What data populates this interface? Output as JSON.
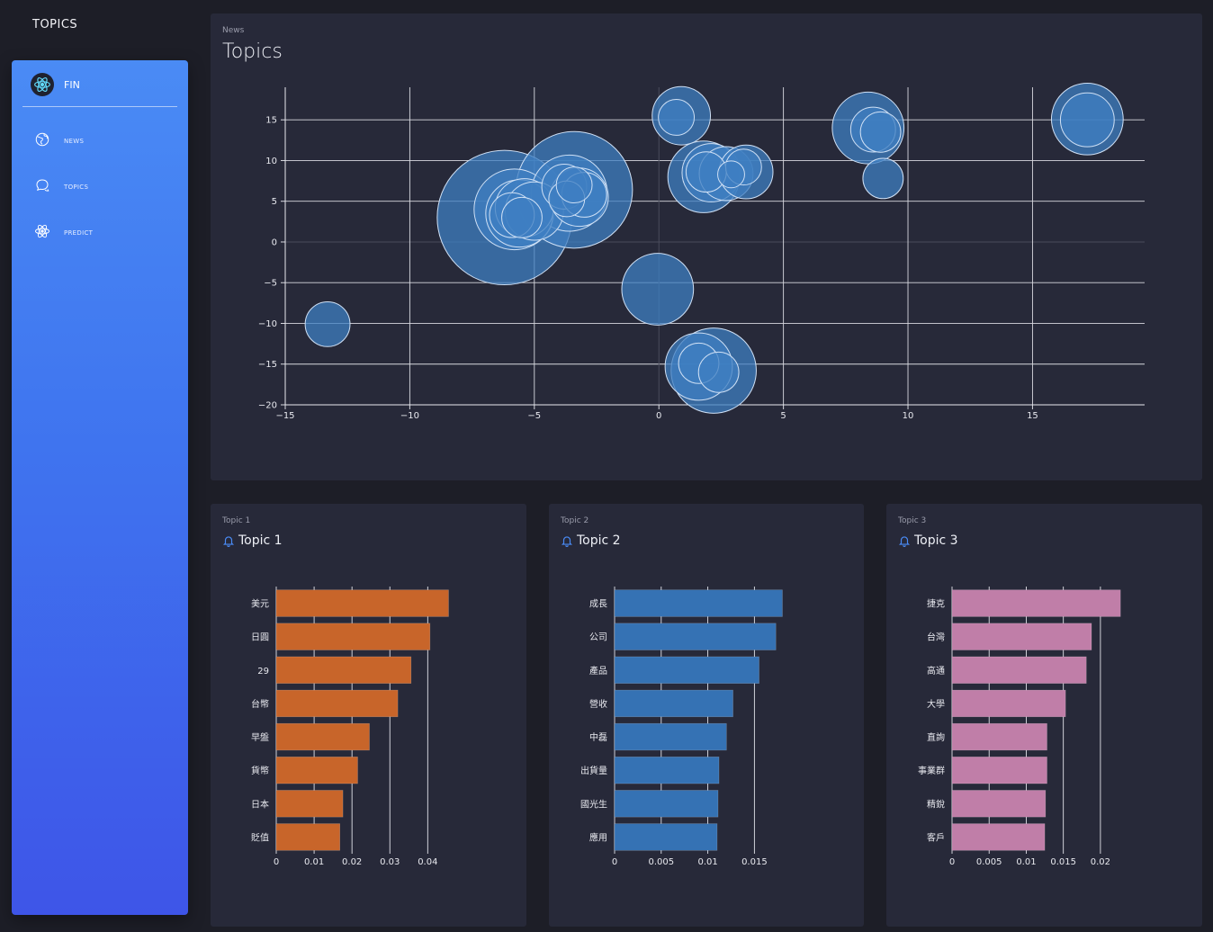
{
  "app": {
    "title": "TOPICS"
  },
  "sidebar": {
    "brand": {
      "label": "FIN",
      "icon": "react-atom-icon"
    },
    "items": [
      {
        "label": "NEWS",
        "icon": "globe-icon"
      },
      {
        "label": "TOPICS",
        "icon": "chat-bubbles-icon"
      },
      {
        "label": "PREDICT",
        "icon": "atom-icon"
      }
    ]
  },
  "main": {
    "subtitle": "News",
    "title": "Topics",
    "chart_data": {
      "type": "scatter",
      "title": "",
      "xlabel": "",
      "ylabel": "",
      "xlim": [
        -15,
        19.5
      ],
      "ylim": [
        -20,
        19
      ],
      "xticks": [
        -15,
        -10,
        -5,
        0,
        5,
        10,
        15
      ],
      "yticks": [
        15,
        10,
        5,
        0,
        -5,
        -10,
        -15,
        -20
      ],
      "grid": true,
      "color": "#3f7fc1",
      "points": [
        {
          "x": -13.3,
          "y": -10.1,
          "r": 1.0
        },
        {
          "x": -6.2,
          "y": 3.0,
          "r": 3.0
        },
        {
          "x": -5.8,
          "y": 4.0,
          "r": 1.8
        },
        {
          "x": -5.6,
          "y": 3.5,
          "r": 1.5
        },
        {
          "x": -5.4,
          "y": 4.2,
          "r": 1.3
        },
        {
          "x": -5.9,
          "y": 3.3,
          "r": 1.0
        },
        {
          "x": -5.0,
          "y": 3.8,
          "r": 1.3
        },
        {
          "x": -5.5,
          "y": 3.0,
          "r": 0.9
        },
        {
          "x": -3.4,
          "y": 6.4,
          "r": 2.6
        },
        {
          "x": -3.6,
          "y": 6.0,
          "r": 1.7
        },
        {
          "x": -3.2,
          "y": 5.5,
          "r": 1.3
        },
        {
          "x": -3.8,
          "y": 6.8,
          "r": 1.0
        },
        {
          "x": -3.0,
          "y": 5.8,
          "r": 1.0
        },
        {
          "x": -3.7,
          "y": 5.3,
          "r": 0.8
        },
        {
          "x": -3.4,
          "y": 7.0,
          "r": 0.8
        },
        {
          "x": -0.05,
          "y": -5.8,
          "r": 1.6
        },
        {
          "x": 0.9,
          "y": 15.5,
          "r": 1.3
        },
        {
          "x": 0.7,
          "y": 15.3,
          "r": 0.8
        },
        {
          "x": 1.8,
          "y": 8.0,
          "r": 1.6
        },
        {
          "x": 2.1,
          "y": 8.5,
          "r": 1.3
        },
        {
          "x": 1.9,
          "y": 8.6,
          "r": 0.9
        },
        {
          "x": 2.7,
          "y": 8.4,
          "r": 1.2
        },
        {
          "x": 3.5,
          "y": 8.6,
          "r": 1.2
        },
        {
          "x": 3.4,
          "y": 9.2,
          "r": 0.8
        },
        {
          "x": 2.9,
          "y": 8.3,
          "r": 0.6
        },
        {
          "x": 1.6,
          "y": -15.3,
          "r": 1.5
        },
        {
          "x": 2.2,
          "y": -15.8,
          "r": 1.9
        },
        {
          "x": 1.6,
          "y": -14.9,
          "r": 0.9
        },
        {
          "x": 2.4,
          "y": -16.0,
          "r": 0.9
        },
        {
          "x": 8.4,
          "y": 14.0,
          "r": 1.6
        },
        {
          "x": 8.6,
          "y": 13.8,
          "r": 1.0
        },
        {
          "x": 8.9,
          "y": 13.5,
          "r": 0.9
        },
        {
          "x": 9.0,
          "y": 7.8,
          "r": 0.9
        },
        {
          "x": 17.2,
          "y": 15.1,
          "r": 1.6
        },
        {
          "x": 17.2,
          "y": 15.0,
          "r": 1.2
        }
      ]
    }
  },
  "topics": [
    {
      "subtitle": "Topic 1",
      "title": "Topic 1",
      "chart_data": {
        "type": "bar",
        "orientation": "horizontal",
        "color": "#c8652a",
        "categories": [
          "美元",
          "日圓",
          "29",
          "台幣",
          "早盤",
          "貨幣",
          "日本",
          "貶值"
        ],
        "values": [
          0.0455,
          0.0406,
          0.0356,
          0.0321,
          0.0246,
          0.0215,
          0.0176,
          0.0168
        ],
        "xlim": [
          0,
          0.048
        ],
        "xticks": [
          0,
          0.01,
          0.02,
          0.03,
          0.04
        ],
        "xtick_labels": [
          "0",
          "0.01",
          "0.02",
          "0.03",
          "0.04"
        ]
      }
    },
    {
      "subtitle": "Topic 2",
      "title": "Topic 2",
      "chart_data": {
        "type": "bar",
        "orientation": "horizontal",
        "color": "#3572b4",
        "categories": [
          "成長",
          "公司",
          "產品",
          "營收",
          "中磊",
          "出貨量",
          "國光生",
          "應用"
        ],
        "values": [
          0.018,
          0.0173,
          0.0155,
          0.0127,
          0.012,
          0.0112,
          0.0111,
          0.011
        ],
        "xlim": [
          0,
          0.0195
        ],
        "xticks": [
          0,
          0.005,
          0.01,
          0.015
        ],
        "xtick_labels": [
          "0",
          "0.005",
          "0.01",
          "0.015"
        ]
      }
    },
    {
      "subtitle": "Topic 3",
      "title": "Topic 3",
      "chart_data": {
        "type": "bar",
        "orientation": "horizontal",
        "color": "#c07ea8",
        "categories": [
          "捷克",
          "台灣",
          "高通",
          "大學",
          "直詢",
          "事業群",
          "精銳",
          "客戶"
        ],
        "values": [
          0.0227,
          0.0188,
          0.0181,
          0.0153,
          0.0128,
          0.0128,
          0.0126,
          0.0125
        ],
        "xlim": [
          0,
          0.0245
        ],
        "xticks": [
          0,
          0.005,
          0.01,
          0.015,
          0.02
        ],
        "xtick_labels": [
          "0",
          "0.005",
          "0.01",
          "0.015",
          "0.02"
        ]
      }
    }
  ]
}
